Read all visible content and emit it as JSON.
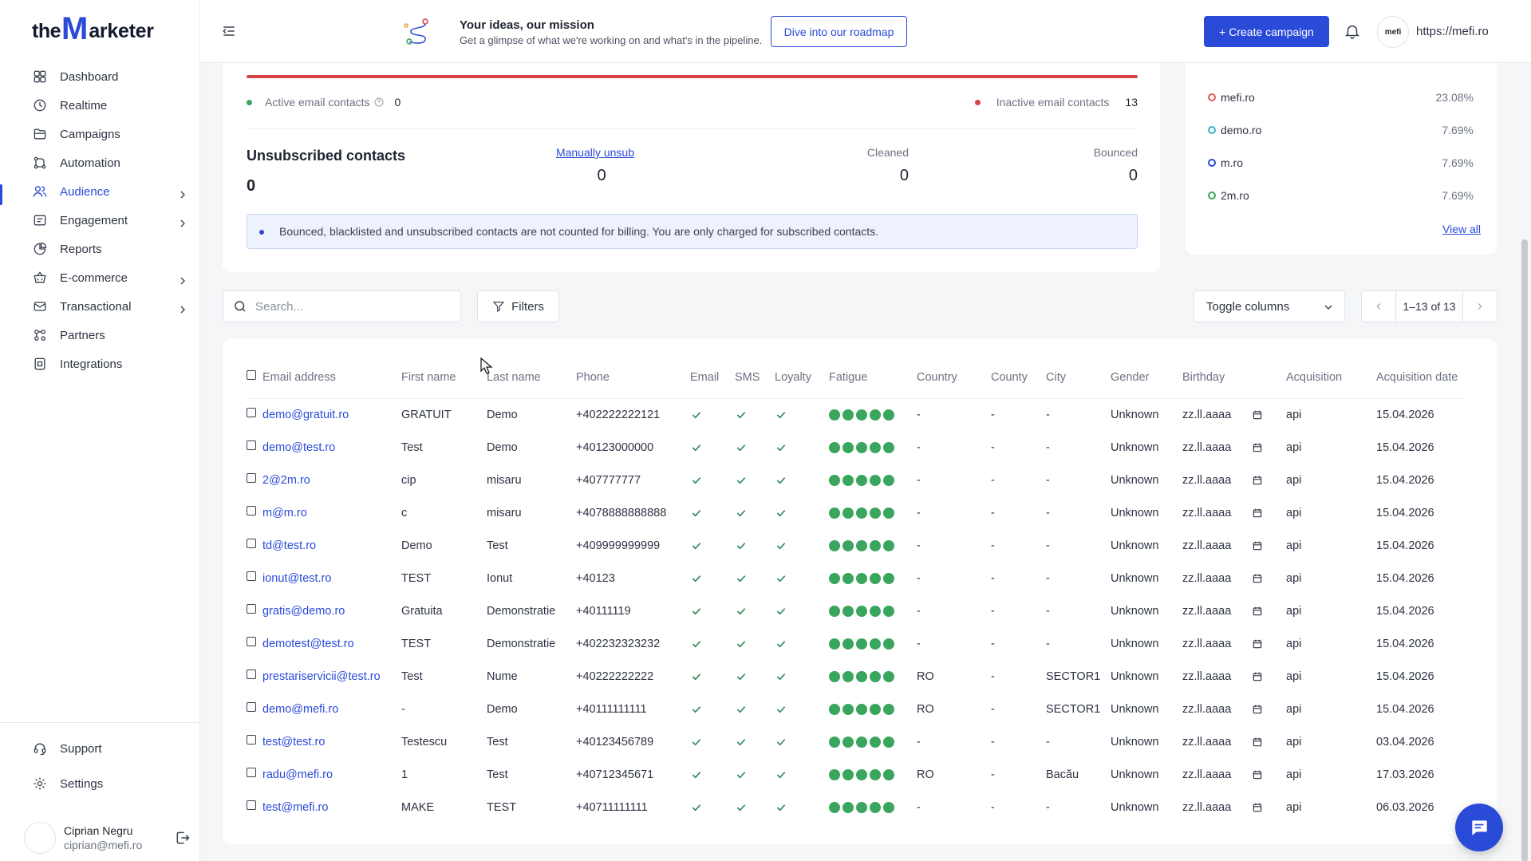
{
  "brand": {
    "logo_the": "the",
    "logo_m": "M",
    "logo_rest": "arketer"
  },
  "sidebar": {
    "items": [
      {
        "label": "Dashboard",
        "icon": "grid-icon"
      },
      {
        "label": "Realtime",
        "icon": "clock-icon"
      },
      {
        "label": "Campaigns",
        "icon": "folder-icon"
      },
      {
        "label": "Automation",
        "icon": "workflow-icon"
      },
      {
        "label": "Audience",
        "icon": "users-icon",
        "active": true,
        "chevron": true
      },
      {
        "label": "Engagement",
        "icon": "engagement-icon",
        "chevron": true
      },
      {
        "label": "Reports",
        "icon": "pie-chart-icon"
      },
      {
        "label": "E-commerce",
        "icon": "basket-icon",
        "chevron": true
      },
      {
        "label": "Transactional",
        "icon": "mail-icon",
        "chevron": true
      },
      {
        "label": "Partners",
        "icon": "partners-icon"
      },
      {
        "label": "Integrations",
        "icon": "integrations-icon"
      }
    ],
    "bottom": [
      {
        "label": "Support",
        "icon": "headset-icon"
      },
      {
        "label": "Settings",
        "icon": "gear-icon"
      }
    ],
    "user": {
      "name": "Ciprian Negru",
      "email": "ciprian@mefi.ro"
    }
  },
  "topbar": {
    "promo_title": "Your ideas, our mission",
    "promo_subtitle": "Get a glimpse of what we're working on and what's in the pipeline.",
    "roadmap_button": "Dive into our roadmap",
    "create_button": "+ Create campaign",
    "account_logo": "mefi",
    "account_url": "https://mefi.ro"
  },
  "summary": {
    "active_label": "Active email contacts",
    "active_value": "0",
    "inactive_label": "Inactive email contacts",
    "inactive_value": "13",
    "unsub_title": "Unsubscribed contacts",
    "unsub_value": "0",
    "manual_label": "Manually unsub",
    "manual_value": "0",
    "cleaned_label": "Cleaned",
    "cleaned_value": "0",
    "bounced_label": "Bounced",
    "bounced_value": "0",
    "info": "Bounced, blacklisted and unsubscribed contacts are not counted for billing. You are only charged for subscribed contacts.",
    "colors": {
      "inactive_bar": "#d64545",
      "active_dot": "#3aa55d",
      "inactive_dot": "#d64545"
    }
  },
  "domains": {
    "items": [
      {
        "name": "mefi.ro",
        "pct": "23.08%",
        "color": "#e05a5a"
      },
      {
        "name": "demo.ro",
        "pct": "7.69%",
        "color": "#3bb3c3"
      },
      {
        "name": "m.ro",
        "pct": "7.69%",
        "color": "#2a4ad8"
      },
      {
        "name": "2m.ro",
        "pct": "7.69%",
        "color": "#3aa55d"
      }
    ],
    "view_all": "View all"
  },
  "toolbar": {
    "search_placeholder": "Search...",
    "filters": "Filters",
    "toggle_columns": "Toggle columns",
    "page_range": "1–13 of 13"
  },
  "table": {
    "columns": [
      "Email address",
      "First name",
      "Last name",
      "Phone",
      "Email",
      "SMS",
      "Loyalty",
      "Fatigue",
      "Country",
      "County",
      "City",
      "Gender",
      "Birthday",
      "Acquisition",
      "Acquisition date"
    ],
    "rows": [
      {
        "email": "demo@gratuit.ro",
        "first": "GRATUIT",
        "last": "Demo",
        "phone": "+402222222121",
        "country": "-",
        "county": "-",
        "city": "-",
        "gender": "Unknown",
        "birthday": "zz.ll.aaaa",
        "acq": "api",
        "date": "15.04.2026"
      },
      {
        "email": "demo@test.ro",
        "first": "Test",
        "last": "Demo",
        "phone": "+40123000000",
        "country": "-",
        "county": "-",
        "city": "-",
        "gender": "Unknown",
        "birthday": "zz.ll.aaaa",
        "acq": "api",
        "date": "15.04.2026"
      },
      {
        "email": "2@2m.ro",
        "first": "cip",
        "last": "misaru",
        "phone": "+407777777",
        "country": "-",
        "county": "-",
        "city": "-",
        "gender": "Unknown",
        "birthday": "zz.ll.aaaa",
        "acq": "api",
        "date": "15.04.2026"
      },
      {
        "email": "m@m.ro",
        "first": "c",
        "last": "misaru",
        "phone": "+4078888888888",
        "country": "-",
        "county": "-",
        "city": "-",
        "gender": "Unknown",
        "birthday": "zz.ll.aaaa",
        "acq": "api",
        "date": "15.04.2026"
      },
      {
        "email": "td@test.ro",
        "first": "Demo",
        "last": "Test",
        "phone": "+409999999999",
        "country": "-",
        "county": "-",
        "city": "-",
        "gender": "Unknown",
        "birthday": "zz.ll.aaaa",
        "acq": "api",
        "date": "15.04.2026"
      },
      {
        "email": "ionut@test.ro",
        "first": "TEST",
        "last": "Ionut",
        "phone": "+40123",
        "country": "-",
        "county": "-",
        "city": "-",
        "gender": "Unknown",
        "birthday": "zz.ll.aaaa",
        "acq": "api",
        "date": "15.04.2026"
      },
      {
        "email": "gratis@demo.ro",
        "first": "Gratuita",
        "last": "Demonstratie",
        "phone": "+40111119",
        "country": "-",
        "county": "-",
        "city": "-",
        "gender": "Unknown",
        "birthday": "zz.ll.aaaa",
        "acq": "api",
        "date": "15.04.2026"
      },
      {
        "email": "demotest@test.ro",
        "first": "TEST",
        "last": "Demonstratie",
        "phone": "+402232323232",
        "country": "-",
        "county": "-",
        "city": "-",
        "gender": "Unknown",
        "birthday": "zz.ll.aaaa",
        "acq": "api",
        "date": "15.04.2026"
      },
      {
        "email": "prestariservicii@test.ro",
        "first": "Test",
        "last": "Nume",
        "phone": "+40222222222",
        "country": "RO",
        "county": "-",
        "city": "SECTOR1",
        "gender": "Unknown",
        "birthday": "zz.ll.aaaa",
        "acq": "api",
        "date": "15.04.2026"
      },
      {
        "email": "demo@mefi.ro",
        "first": "-",
        "last": "Demo",
        "phone": "+40111111111",
        "country": "RO",
        "county": "-",
        "city": "SECTOR1",
        "gender": "Unknown",
        "birthday": "zz.ll.aaaa",
        "acq": "api",
        "date": "15.04.2026"
      },
      {
        "email": "test@test.ro",
        "first": "Testescu",
        "last": "Test",
        "phone": "+40123456789",
        "country": "-",
        "county": "-",
        "city": "-",
        "gender": "Unknown",
        "birthday": "zz.ll.aaaa",
        "acq": "api",
        "date": "03.04.2026"
      },
      {
        "email": "radu@mefi.ro",
        "first": "1",
        "last": "Test",
        "phone": "+40712345671",
        "country": "RO",
        "county": "-",
        "city": "Bacău",
        "gender": "Unknown",
        "birthday": "zz.ll.aaaa",
        "acq": "api",
        "date": "17.03.2026"
      },
      {
        "email": "test@mefi.ro",
        "first": "MAKE",
        "last": "TEST",
        "phone": "+40711111111",
        "country": "-",
        "county": "-",
        "city": "-",
        "gender": "Unknown",
        "birthday": "zz.ll.aaaa",
        "acq": "api",
        "date": "06.03.2026"
      }
    ],
    "fatigue_color": "#3aa55d",
    "check_color": "#2e8b57"
  }
}
